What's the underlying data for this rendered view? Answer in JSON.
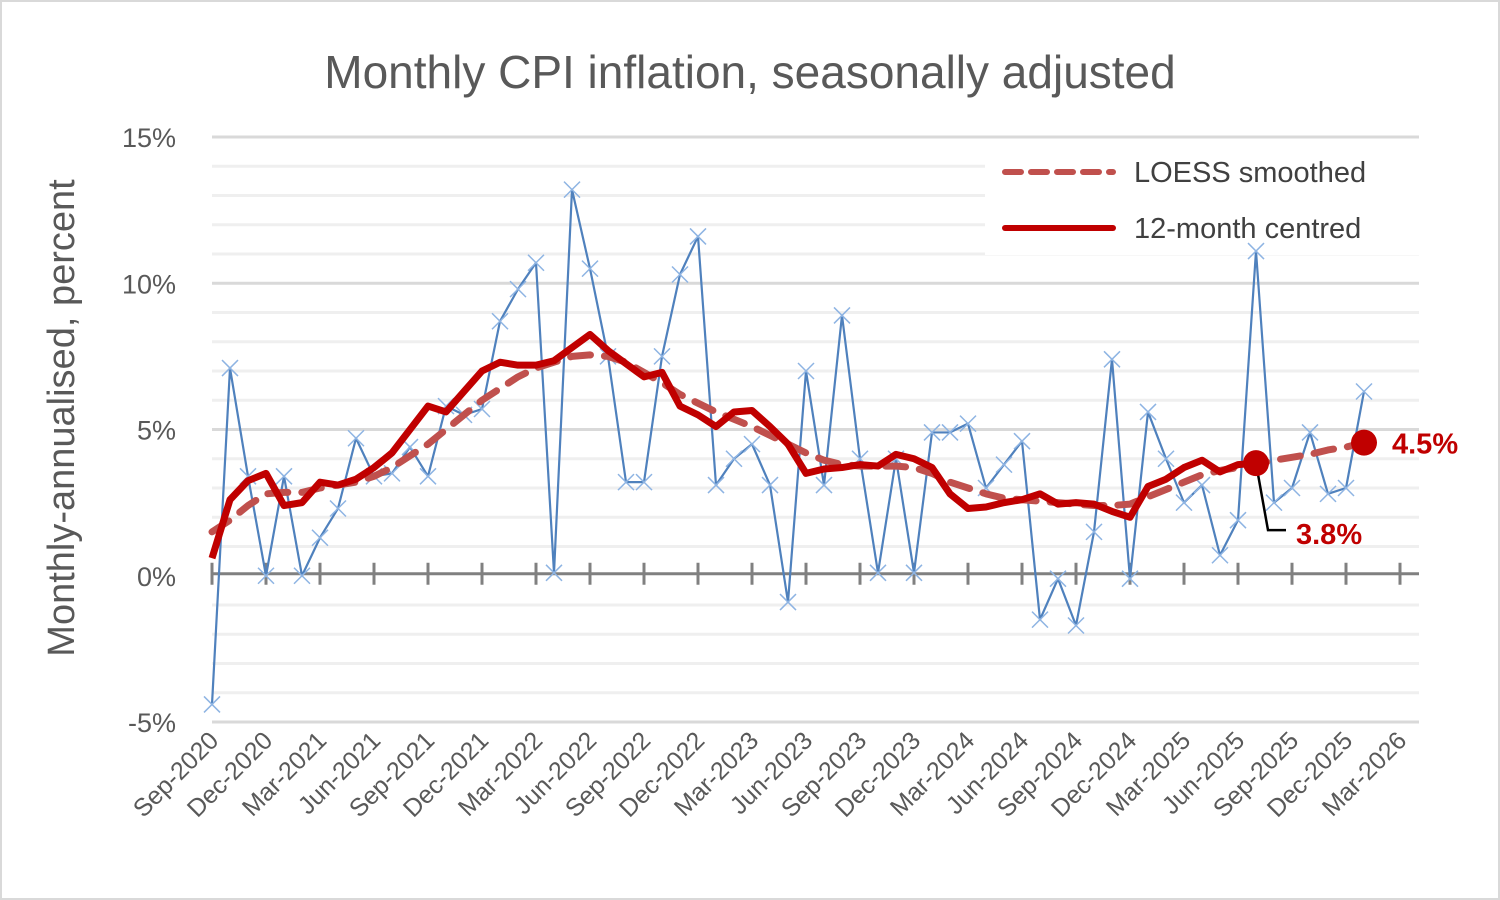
{
  "chart_data": {
    "type": "line",
    "title": "Monthly CPI inflation, seasonally adjusted",
    "xlabel": "",
    "ylabel": "Monthly-annualised, percent",
    "ylim": [
      -5,
      15
    ],
    "y_major_ticks": [
      -5,
      0,
      5,
      10,
      15
    ],
    "y_tick_labels": [
      "-5%",
      "0%",
      "5%",
      "10%",
      "15%"
    ],
    "y_minor_step": 1,
    "grid": true,
    "legend_position": "top-right",
    "x_tick_labels": [
      "Sep-2020",
      "Dec-2020",
      "Mar-2021",
      "Jun-2021",
      "Sep-2021",
      "Dec-2021",
      "Mar-2022",
      "Jun-2022",
      "Sep-2022",
      "Dec-2022",
      "Mar-2023",
      "Jun-2023",
      "Sep-2023",
      "Dec-2023",
      "Mar-2024",
      "Jun-2024",
      "Sep-2024",
      "Dec-2024",
      "Mar-2025",
      "Jun-2025",
      "Sep-2025",
      "Dec-2025",
      "Mar-2026"
    ],
    "x": [
      "Sep-2020",
      "Oct-2020",
      "Nov-2020",
      "Dec-2020",
      "Jan-2021",
      "Feb-2021",
      "Mar-2021",
      "Apr-2021",
      "May-2021",
      "Jun-2021",
      "Jul-2021",
      "Aug-2021",
      "Sep-2021",
      "Oct-2021",
      "Nov-2021",
      "Dec-2021",
      "Jan-2022",
      "Feb-2022",
      "Mar-2022",
      "Apr-2022",
      "May-2022",
      "Jun-2022",
      "Jul-2022",
      "Aug-2022",
      "Sep-2022",
      "Oct-2022",
      "Nov-2022",
      "Dec-2022",
      "Jan-2023",
      "Feb-2023",
      "Mar-2023",
      "Apr-2023",
      "May-2023",
      "Jun-2023",
      "Jul-2023",
      "Aug-2023",
      "Sep-2023",
      "Oct-2023",
      "Nov-2023",
      "Dec-2023",
      "Jan-2024",
      "Feb-2024",
      "Mar-2024",
      "Apr-2024",
      "May-2024",
      "Jun-2024",
      "Jul-2024",
      "Aug-2024",
      "Sep-2024",
      "Oct-2024",
      "Nov-2024",
      "Dec-2024",
      "Jan-2025",
      "Feb-2025",
      "Mar-2025",
      "Apr-2025",
      "May-2025",
      "Jun-2025",
      "Jul-2025",
      "Aug-2025",
      "Sep-2025",
      "Oct-2025",
      "Nov-2025",
      "Dec-2025",
      "Jan-2026"
    ],
    "series": [
      {
        "name": "Monthly",
        "color": "#4f81bd",
        "in_legend": false,
        "values": [
          -4.4,
          7.1,
          3.4,
          0.0,
          3.4,
          0.0,
          1.3,
          2.3,
          4.7,
          3.4,
          3.5,
          4.4,
          3.4,
          5.8,
          5.5,
          5.7,
          8.7,
          9.8,
          10.7,
          0.1,
          13.2,
          10.5,
          7.5,
          3.2,
          3.2,
          7.5,
          10.3,
          11.6,
          3.1,
          4.0,
          4.5,
          3.1,
          -0.9,
          7.0,
          3.1,
          8.9,
          4.0,
          0.1,
          4.0,
          0.1,
          4.9,
          4.9,
          5.2,
          3.0,
          3.8,
          4.6,
          -1.5,
          -0.1,
          -1.7,
          1.5,
          7.4,
          -0.1,
          5.6,
          4.0,
          2.5,
          3.1,
          0.7,
          1.9,
          11.1,
          2.5,
          3.0,
          4.9,
          2.8,
          3.0,
          6.3
        ]
      },
      {
        "name": "LOESS smoothed",
        "color": "#c0504d",
        "style": "dashed",
        "in_legend": true,
        "values": [
          1.5,
          1.9,
          2.4,
          2.8,
          2.85,
          2.85,
          3.0,
          3.1,
          3.2,
          3.4,
          3.7,
          4.1,
          4.5,
          5.0,
          5.5,
          6.0,
          6.4,
          6.8,
          7.1,
          7.3,
          7.5,
          7.55,
          7.5,
          7.3,
          6.95,
          6.6,
          6.2,
          5.9,
          5.6,
          5.35,
          5.1,
          4.8,
          4.5,
          4.2,
          3.95,
          3.8,
          3.75,
          3.75,
          3.75,
          3.7,
          3.5,
          3.2,
          3.0,
          2.8,
          2.65,
          2.6,
          2.55,
          2.5,
          2.45,
          2.4,
          2.4,
          2.45,
          2.7,
          2.95,
          3.2,
          3.45,
          3.6,
          3.7,
          3.8,
          3.95,
          4.05,
          4.15,
          4.3,
          4.4,
          4.55
        ]
      },
      {
        "name": "12-month centred",
        "color": "#c00000",
        "style": "solid",
        "in_legend": true,
        "values": [
          0.6,
          2.6,
          3.25,
          3.5,
          2.4,
          2.5,
          3.2,
          3.1,
          3.3,
          3.7,
          4.2,
          5.0,
          5.8,
          5.6,
          6.3,
          7.0,
          7.3,
          7.2,
          7.2,
          7.35,
          7.8,
          8.25,
          7.7,
          7.25,
          6.8,
          6.95,
          5.8,
          5.5,
          5.1,
          5.6,
          5.65,
          5.1,
          4.5,
          3.5,
          3.65,
          3.7,
          3.8,
          3.75,
          4.15,
          4.0,
          3.7,
          2.8,
          2.3,
          2.35,
          2.5,
          2.6,
          2.8,
          2.45,
          2.5,
          2.45,
          2.2,
          2.0,
          3.05,
          3.3,
          3.7,
          3.95,
          3.55,
          3.8,
          3.85
        ]
      }
    ],
    "annotations": [
      {
        "series": "12-month centred",
        "x": "Jul-2025",
        "value": 3.8,
        "text": "3.8%"
      },
      {
        "series": "LOESS smoothed",
        "x": "Jan-2026",
        "value": 4.5,
        "text": "4.5%"
      }
    ]
  },
  "legend": {
    "items": [
      {
        "label": "LOESS smoothed"
      },
      {
        "label": "12-month centred"
      }
    ]
  }
}
